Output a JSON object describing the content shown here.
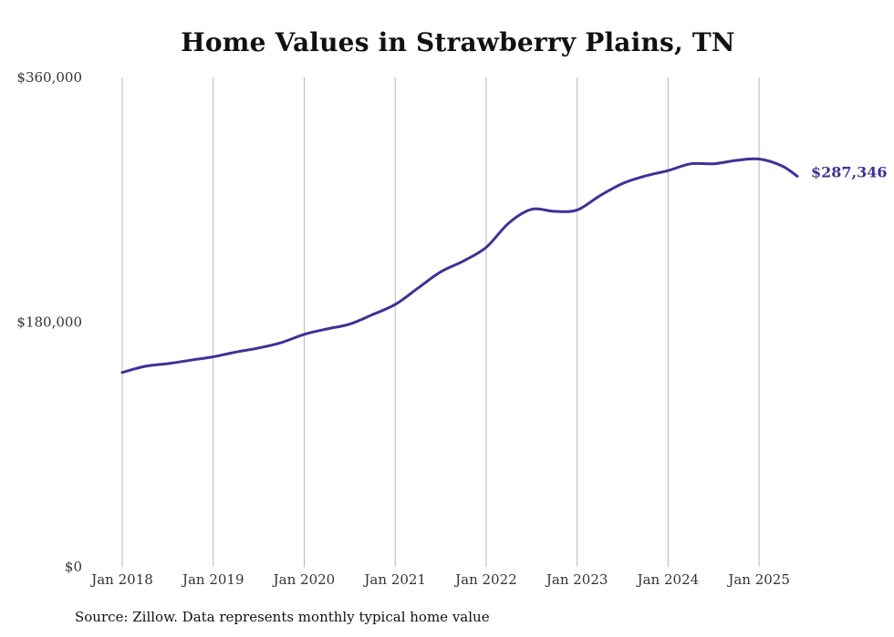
{
  "chart_data": {
    "type": "line",
    "title": "Home Values in Strawberry Plains, TN",
    "xlabel": "",
    "ylabel": "",
    "ylim": [
      0,
      360000
    ],
    "y_ticks": [
      {
        "value": 0,
        "label": "$0"
      },
      {
        "value": 180000,
        "label": "$180,000"
      },
      {
        "value": 360000,
        "label": "$360,000"
      }
    ],
    "x_ticks": [
      {
        "value": 2018.0,
        "label": "Jan 2018"
      },
      {
        "value": 2019.0,
        "label": "Jan 2019"
      },
      {
        "value": 2020.0,
        "label": "Jan 2020"
      },
      {
        "value": 2021.0,
        "label": "Jan 2021"
      },
      {
        "value": 2022.0,
        "label": "Jan 2022"
      },
      {
        "value": 2023.0,
        "label": "Jan 2023"
      },
      {
        "value": 2024.0,
        "label": "Jan 2024"
      },
      {
        "value": 2025.0,
        "label": "Jan 2025"
      }
    ],
    "xlim": [
      2018.0,
      2025.42
    ],
    "grid": "vertical",
    "line_color": "#3b3396",
    "series": [
      {
        "x": [
          2018.0,
          2018.25,
          2018.5,
          2018.75,
          2019.0,
          2019.25,
          2019.5,
          2019.75,
          2020.0,
          2020.25,
          2020.5,
          2020.75,
          2021.0,
          2021.25,
          2021.5,
          2021.75,
          2022.0,
          2022.25,
          2022.5,
          2022.75,
          2023.0,
          2023.25,
          2023.5,
          2023.75,
          2024.0,
          2024.25,
          2024.5,
          2024.75,
          2025.0,
          2025.25,
          2025.42
        ],
        "values": [
          143000,
          147500,
          149500,
          152000,
          154500,
          158000,
          161000,
          165000,
          171000,
          175000,
          178500,
          185500,
          193000,
          205000,
          217000,
          225000,
          235000,
          253000,
          263000,
          261500,
          262500,
          273000,
          282000,
          287500,
          291500,
          296500,
          296500,
          299000,
          300000,
          295000,
          287346
        ],
        "end_label": "$287,346"
      }
    ]
  },
  "source_note": "Source: Zillow. Data represents monthly typical home value"
}
